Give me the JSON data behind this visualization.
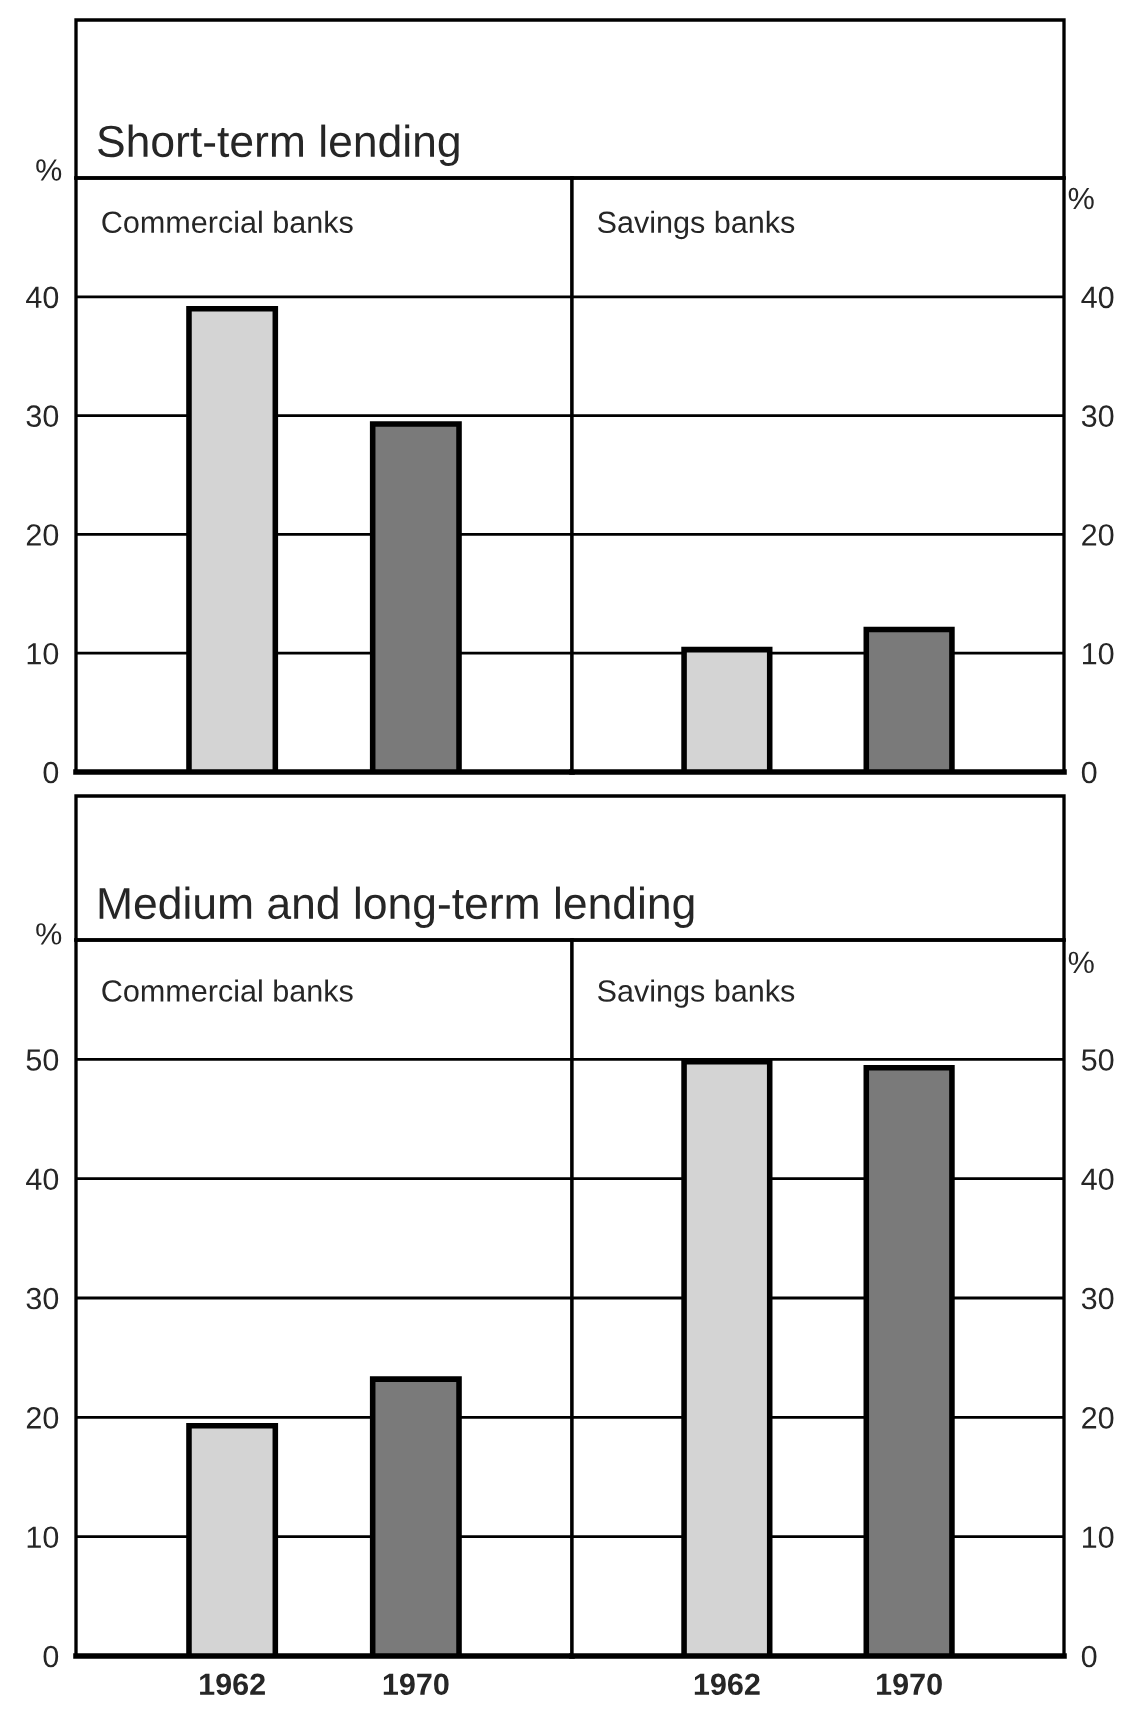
{
  "chart_data": [
    {
      "type": "bar",
      "title": "Short-term lending",
      "subtitle": "Commercial banks",
      "ylabel": "%",
      "categories": [
        null,
        null
      ],
      "values": [
        39,
        29.3
      ],
      "colors": [
        "#d4d4d4",
        "#7a7a7a"
      ],
      "ylim": [
        0,
        50
      ],
      "yticks": [
        0,
        10,
        20,
        30,
        40
      ],
      "grid": "y"
    },
    {
      "type": "bar",
      "subtitle": "Savings banks",
      "y2label": "%",
      "categories": [
        null,
        null
      ],
      "colors": [
        "#d4d4d4",
        "#7a7a7a"
      ],
      "series": [
        {
          "axis": "y2",
          "values": [
            10.3,
            12
          ]
        }
      ],
      "y2lim": [
        0,
        50
      ],
      "y2ticks": [
        0,
        10,
        20,
        30,
        40
      ],
      "grid": "y"
    },
    {
      "type": "bar",
      "title": "Medium and long-term lending",
      "subtitle": "Commercial banks",
      "ylabel": "%",
      "categories": [
        "1962",
        "1970"
      ],
      "values": [
        19.3,
        23.2
      ],
      "colors": [
        "#d4d4d4",
        "#7a7a7a"
      ],
      "ylim": [
        0,
        60
      ],
      "yticks": [
        0,
        10,
        20,
        30,
        40,
        50
      ],
      "grid": "y"
    },
    {
      "type": "bar",
      "subtitle": "Savings banks",
      "y2label": "%",
      "categories": [
        "1962",
        "1970"
      ],
      "colors": [
        "#d4d4d4",
        "#7a7a7a"
      ],
      "series": [
        {
          "axis": "y2",
          "values": [
            49.8,
            49.3
          ]
        }
      ],
      "y2lim": [
        0,
        60
      ],
      "y2ticks": [
        0,
        10,
        20,
        30,
        40,
        50
      ],
      "grid": "y"
    }
  ]
}
